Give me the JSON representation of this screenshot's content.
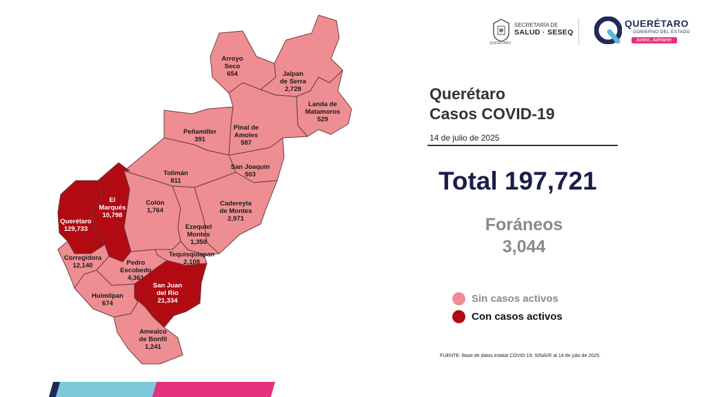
{
  "header": {
    "seseq_line1": "SECRETARÍA DE",
    "seseq_line2": "SALUD · SESEQ",
    "seseq_small": "QUERÉTARO",
    "qro_name": "QUERÉTARO",
    "qro_sub": "GOBIERNO DEL ESTADO",
    "qro_slogan": "Juntos, Adelante."
  },
  "panel": {
    "title_line1": "Querétaro",
    "title_line2": "Casos COVID-19",
    "date": "14 de julio de 2025",
    "total": "Total 197,721",
    "foraneos_label": "Foráneos",
    "foraneos_value": "3,044"
  },
  "legend": {
    "inactive_label": "Sin casos activos",
    "active_label": "Con casos activos",
    "inactive_color": "#ee8e92",
    "active_color": "#b10a12"
  },
  "source": "FUENTE: Base de datos estatal COVID-19, SINAVE al 14 de julio de 2025.",
  "municipalities": [
    {
      "id": "arroyo-seco",
      "l1": "Arroyo",
      "l2": "Seco",
      "cases": "654",
      "status": "inactive"
    },
    {
      "id": "jalpan",
      "l1": "Jalpan",
      "l2": "de Serra",
      "cases": "2,728",
      "status": "inactive"
    },
    {
      "id": "landa",
      "l1": "Landa de",
      "l2": "Matamoros",
      "cases": "529",
      "status": "inactive"
    },
    {
      "id": "penamiller",
      "l1": "Peñamiller",
      "l2": "",
      "cases": "391",
      "status": "inactive"
    },
    {
      "id": "pinal",
      "l1": "Pinal de",
      "l2": "Amoles",
      "cases": "587",
      "status": "inactive"
    },
    {
      "id": "san-joaquin",
      "l1": "San Joaquín",
      "l2": "",
      "cases": "503",
      "status": "inactive"
    },
    {
      "id": "toliman",
      "l1": "Tolimán",
      "l2": "",
      "cases": "811",
      "status": "inactive"
    },
    {
      "id": "el-marques",
      "l1": "El",
      "l2": "Marqués",
      "cases": "10,798",
      "status": "active"
    },
    {
      "id": "colon",
      "l1": "Colón",
      "l2": "",
      "cases": "1,764",
      "status": "inactive"
    },
    {
      "id": "cadereyta",
      "l1": "Cadereyta",
      "l2": "de Montes",
      "cases": "2,971",
      "status": "inactive"
    },
    {
      "id": "queretaro",
      "l1": "Querétaro",
      "l2": "",
      "cases": "129,733",
      "status": "active"
    },
    {
      "id": "ezequiel",
      "l1": "Ezequiel",
      "l2": "Montes",
      "cases": "1,350",
      "status": "inactive"
    },
    {
      "id": "corregidora",
      "l1": "Corregidora",
      "l2": "",
      "cases": "12,140",
      "status": "inactive"
    },
    {
      "id": "tequisquiapan",
      "l1": "Tequisquiapan",
      "l2": "",
      "cases": "2,108",
      "status": "inactive"
    },
    {
      "id": "pedro-escobedo",
      "l1": "Pedro",
      "l2": "Escobedo",
      "cases": "4,361",
      "status": "inactive"
    },
    {
      "id": "san-juan",
      "l1": "San Juan",
      "l2": "del Río",
      "cases": "21,334",
      "status": "active"
    },
    {
      "id": "huimilpan",
      "l1": "Huimilpan",
      "l2": "",
      "cases": "674",
      "status": "inactive"
    },
    {
      "id": "amealco",
      "l1": "Amealco",
      "l2": "de Bonfil",
      "cases": "1,241",
      "status": "inactive"
    }
  ],
  "bottom_bar_colors": [
    "#1f2a5b",
    "#7ec8dc",
    "#e4317f"
  ]
}
